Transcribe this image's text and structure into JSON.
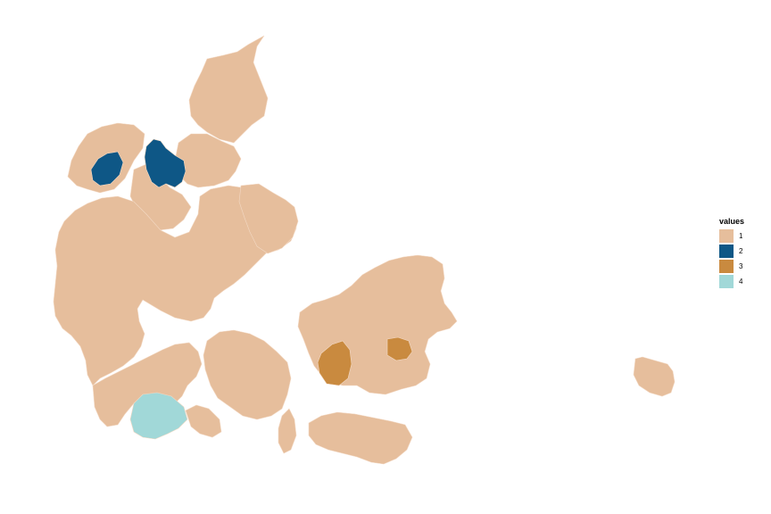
{
  "legend": {
    "title": "values",
    "items": [
      {
        "label": "1",
        "color": "#E6BE9C"
      },
      {
        "label": "2",
        "color": "#0E5786"
      },
      {
        "label": "3",
        "color": "#C98A3F"
      },
      {
        "label": "4",
        "color": "#A1D8D8"
      }
    ]
  },
  "map": {
    "country": "Denmark",
    "region_values": {
      "default": 1,
      "thisted_area_nw_jutland": 2,
      "aalborg_area_n_jutland": 2,
      "south_zealand_municipality_a": 3,
      "south_zealand_municipality_b": 3,
      "southern_jutland_municipality": 4
    }
  }
}
